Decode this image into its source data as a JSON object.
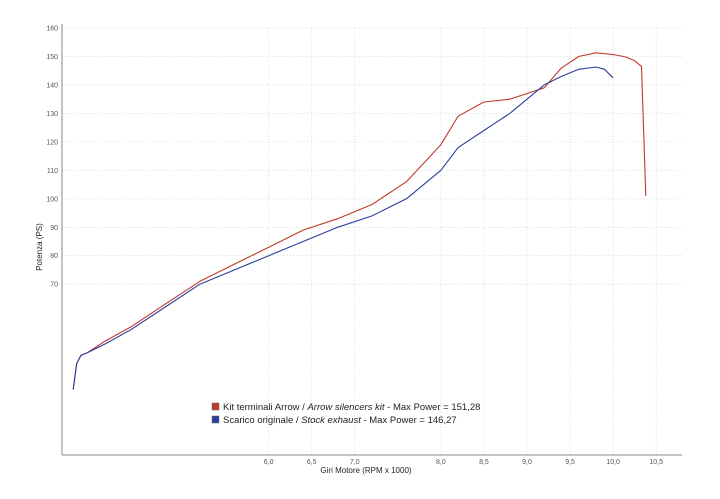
{
  "chart_data": {
    "type": "line",
    "xlabel": "Giri Motore (RPM x 1000)",
    "ylabel": "Potenza (PS)",
    "xlim": [
      3.6,
      10.8
    ],
    "ylim": [
      10,
      160
    ],
    "x_ticks": [
      {
        "value": 6.0,
        "label": "6,0"
      },
      {
        "value": 6.5,
        "label": "6,5"
      },
      {
        "value": 7.0,
        "label": "7,0"
      },
      {
        "value": 8.0,
        "label": "8,0"
      },
      {
        "value": 8.5,
        "label": "8,5"
      },
      {
        "value": 9.0,
        "label": "9,0"
      },
      {
        "value": 9.5,
        "label": "9,5"
      },
      {
        "value": 10.0,
        "label": "10,0"
      },
      {
        "value": 10.5,
        "label": "10,5"
      }
    ],
    "y_ticks": [
      {
        "value": 70,
        "label": "70"
      },
      {
        "value": 80,
        "label": "80"
      },
      {
        "value": 90,
        "label": "90"
      },
      {
        "value": 100,
        "label": "100"
      },
      {
        "value": 110,
        "label": "110"
      },
      {
        "value": 120,
        "label": "120"
      },
      {
        "value": 130,
        "label": "130"
      },
      {
        "value": 140,
        "label": "140"
      },
      {
        "value": 150,
        "label": "150"
      },
      {
        "value": 160,
        "label": "160"
      }
    ],
    "grid": true,
    "legend_position": "bottom-center",
    "series": [
      {
        "color": "#c0392b",
        "label_parts": [
          "Kit terminali Arrow / ",
          "Arrow silencers kit",
          " - Max Power = 151,28"
        ],
        "x": [
          3.73,
          3.77,
          3.82,
          3.9,
          4.1,
          4.4,
          4.8,
          5.2,
          5.6,
          6.0,
          6.4,
          6.8,
          7.2,
          7.6,
          8.0,
          8.2,
          8.5,
          8.8,
          9.0,
          9.2,
          9.4,
          9.6,
          9.8,
          10.0,
          10.15,
          10.25,
          10.33,
          10.38
        ],
        "y": [
          33,
          42,
          45,
          46,
          50,
          55,
          63,
          71,
          77,
          83,
          89,
          93,
          98,
          106,
          119,
          129,
          134,
          135,
          137,
          139,
          146,
          150,
          151.3,
          150.7,
          149.8,
          148.5,
          146.5,
          101
        ]
      },
      {
        "color": "#2b3f9c",
        "label_parts": [
          "Scarico originale / ",
          "Stock exhaust",
          " - Max Power = 146,27"
        ],
        "x": [
          3.73,
          3.77,
          3.82,
          3.9,
          4.1,
          4.4,
          4.8,
          5.2,
          5.6,
          6.0,
          6.4,
          6.8,
          7.2,
          7.6,
          8.0,
          8.2,
          8.5,
          8.8,
          9.0,
          9.2,
          9.4,
          9.6,
          9.8,
          9.9,
          10.0
        ],
        "y": [
          33,
          42,
          45,
          46,
          49,
          54,
          62,
          70,
          75,
          80,
          85,
          90,
          94,
          100,
          110,
          118,
          124,
          130,
          135,
          140,
          143,
          145.5,
          146.3,
          145.5,
          142.5
        ]
      }
    ]
  }
}
